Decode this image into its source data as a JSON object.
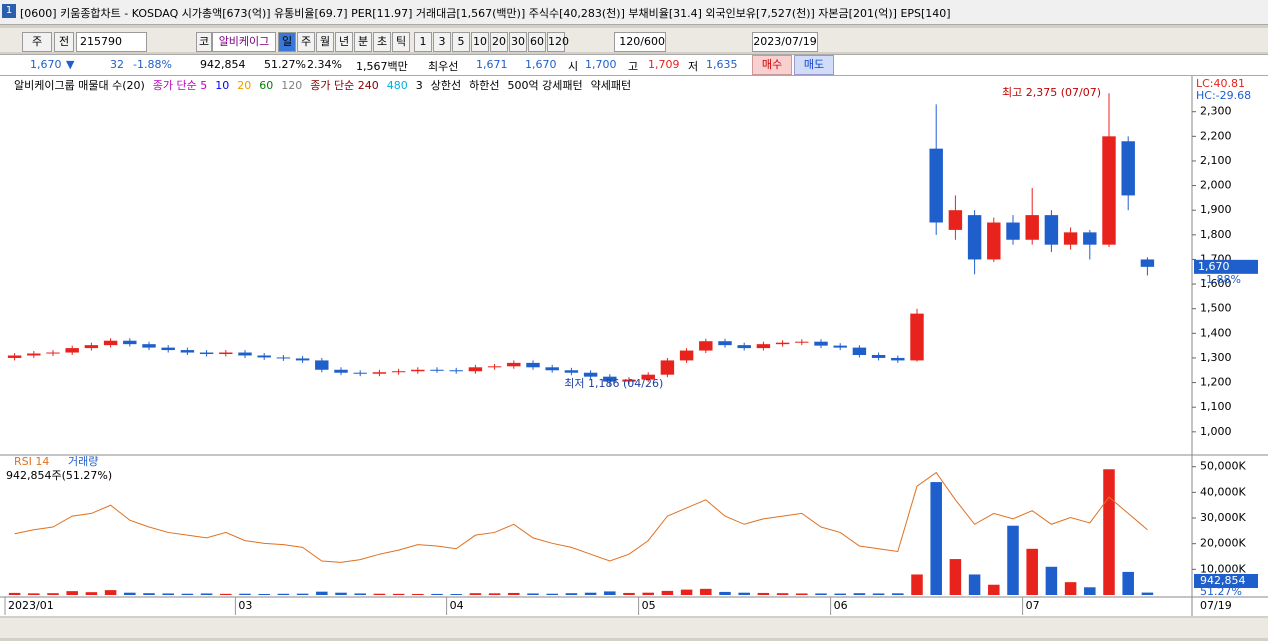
{
  "window_title": "[0600] 키움종합차트 - KOSDAQ 시가총액[673(억)] 유통비율[69.7] PER[11.97] 거래대금[1,567(백만)] 주식수[40,283(천)] 부채비율[31.4] 외국인보유[7,527(천)] 자본금[201(억)] EPS[140]",
  "toolbar": {
    "period": "주",
    "prev": "전",
    "code": "215790",
    "mode": "코",
    "name": "알비케이그",
    "timeframes": [
      "일",
      "주",
      "월",
      "년",
      "분",
      "초",
      "틱"
    ],
    "intervals": [
      "1",
      "3",
      "5",
      "10",
      "20",
      "30",
      "60",
      "120"
    ],
    "count": "120/600",
    "date": "2023/07/19"
  },
  "quote": {
    "price": "1,670",
    "arrow": "▼",
    "change": "32",
    "change_pct": "-1.88%",
    "volume": "942,854",
    "vol_ratio": "51.27%",
    "turnover": "2.34%",
    "amount": "1,567백만",
    "best_label": "최우선",
    "ask": "1,671",
    "bid": "1,670",
    "open_label": "시",
    "open": "1,700",
    "high_label": "고",
    "high": "1,709",
    "low_label": "저",
    "low": "1,635",
    "buy": "매수",
    "sell": "매도"
  },
  "legend": [
    {
      "text": "알비케이그룹 매물대 수(20)",
      "color": "#000000"
    },
    {
      "text": "종가 단순 5",
      "color": "#c000c0"
    },
    {
      "text": "10",
      "color": "#0000ff"
    },
    {
      "text": "20",
      "color": "#e8a000"
    },
    {
      "text": "60",
      "color": "#008000"
    },
    {
      "text": "120",
      "color": "#808080"
    },
    {
      "text": "종가 단순 240",
      "color": "#800000"
    },
    {
      "text": "480",
      "color": "#00b0e0"
    },
    {
      "text": "3",
      "color": "#000000"
    },
    {
      "text": "상한선",
      "color": "#000000"
    },
    {
      "text": "하한선",
      "color": "#000000"
    },
    {
      "text": "500억 강세패턴",
      "color": "#000000"
    },
    {
      "text": "약세패턴",
      "color": "#000000"
    }
  ],
  "corner": {
    "lc": "LC:40.81",
    "hc": "HC:-29.68"
  },
  "lower_legend": {
    "rsi": "RSI 14",
    "vol": "거래량",
    "info": "942,854주(51.27%)"
  },
  "chart_data": {
    "type": "candlestick",
    "categories": [
      "2023/01",
      null,
      null,
      null,
      null,
      null,
      null,
      null,
      null,
      null,
      null,
      null,
      "03",
      null,
      null,
      null,
      null,
      null,
      null,
      null,
      null,
      null,
      null,
      "04",
      null,
      null,
      null,
      null,
      null,
      null,
      null,
      null,
      null,
      "05",
      null,
      null,
      null,
      null,
      null,
      null,
      null,
      null,
      null,
      "06",
      null,
      null,
      null,
      null,
      null,
      null,
      null,
      null,
      null,
      "07",
      null,
      null,
      null,
      null,
      null,
      null
    ],
    "last_date": "07/19",
    "open": [
      1300,
      1310,
      1318,
      1322,
      1340,
      1352,
      1370,
      1356,
      1342,
      1332,
      1322,
      1316,
      1322,
      1310,
      1302,
      1298,
      1290,
      1252,
      1240,
      1236,
      1242,
      1246,
      1252,
      1250,
      1246,
      1262,
      1266,
      1280,
      1262,
      1250,
      1240,
      1224,
      1204,
      1212,
      1232,
      1290,
      1330,
      1368,
      1352,
      1340,
      1356,
      1362,
      1366,
      1350,
      1342,
      1312,
      1300,
      1290,
      2150,
      1820,
      1880,
      1700,
      1850,
      1780,
      1880,
      1760,
      1810,
      1760,
      2180,
      1700
    ],
    "high": [
      1320,
      1328,
      1332,
      1350,
      1362,
      1380,
      1380,
      1366,
      1352,
      1342,
      1332,
      1332,
      1332,
      1320,
      1312,
      1308,
      1300,
      1262,
      1250,
      1252,
      1256,
      1262,
      1262,
      1260,
      1272,
      1276,
      1290,
      1290,
      1272,
      1260,
      1250,
      1234,
      1222,
      1242,
      1300,
      1340,
      1378,
      1378,
      1362,
      1366,
      1372,
      1376,
      1376,
      1360,
      1352,
      1322,
      1310,
      1500,
      2330,
      1960,
      1900,
      1870,
      1880,
      1990,
      1900,
      1830,
      1820,
      2375,
      2200,
      1709
    ],
    "low": [
      1290,
      1300,
      1308,
      1312,
      1330,
      1342,
      1346,
      1332,
      1322,
      1312,
      1306,
      1306,
      1300,
      1292,
      1288,
      1280,
      1242,
      1230,
      1226,
      1226,
      1232,
      1236,
      1240,
      1236,
      1236,
      1252,
      1256,
      1252,
      1240,
      1230,
      1214,
      1186,
      1194,
      1202,
      1222,
      1280,
      1320,
      1342,
      1330,
      1330,
      1346,
      1352,
      1340,
      1332,
      1302,
      1290,
      1280,
      1285,
      1800,
      1780,
      1640,
      1690,
      1760,
      1760,
      1730,
      1740,
      1700,
      1750,
      1900,
      1635
    ],
    "close": [
      1310,
      1318,
      1322,
      1340,
      1352,
      1370,
      1356,
      1342,
      1332,
      1322,
      1316,
      1322,
      1310,
      1302,
      1298,
      1290,
      1252,
      1240,
      1236,
      1242,
      1246,
      1252,
      1250,
      1246,
      1262,
      1266,
      1280,
      1262,
      1250,
      1240,
      1224,
      1204,
      1212,
      1232,
      1290,
      1330,
      1368,
      1352,
      1340,
      1356,
      1362,
      1366,
      1350,
      1342,
      1312,
      1300,
      1290,
      1480,
      1850,
      1900,
      1700,
      1850,
      1780,
      1880,
      1760,
      1810,
      1760,
      2200,
      1960,
      1670
    ],
    "up_color": "#e8221c",
    "down_color": "#1f5fcc",
    "ylim": [
      914,
      2445
    ],
    "yticks": [
      {
        "value": 1000,
        "label": "1,000"
      },
      {
        "value": 1100,
        "label": "1,100"
      },
      {
        "value": 1200,
        "label": "1,200"
      },
      {
        "value": 1300,
        "label": "1,300"
      },
      {
        "value": 1400,
        "label": "1,400"
      },
      {
        "value": 1500,
        "label": "1,500"
      },
      {
        "value": 1600,
        "label": "1,600"
      },
      {
        "value": 1700,
        "label": "1,700"
      },
      {
        "value": 1800,
        "label": "1,800"
      },
      {
        "value": 1900,
        "label": "1,900"
      },
      {
        "value": 2000,
        "label": "2,000"
      },
      {
        "value": 2100,
        "label": "2,100"
      },
      {
        "value": 2200,
        "label": "2,200"
      },
      {
        "value": 2300,
        "label": "2,300"
      }
    ],
    "last_price": {
      "value": 1670,
      "label": "1,670",
      "change": "-1.88%"
    },
    "high_annotation": "최고 2,375 (07/07)",
    "low_annotation": "최저 1,186 (04/26)",
    "volume": [
      820,
      640,
      700,
      1500,
      1100,
      1900,
      900,
      700,
      600,
      500,
      600,
      450,
      500,
      400,
      480,
      520,
      1300,
      900,
      600,
      500,
      450,
      400,
      420,
      380,
      700,
      650,
      800,
      600,
      500,
      700,
      900,
      1400,
      800,
      900,
      1600,
      2100,
      2400,
      1200,
      900,
      800,
      700,
      600,
      600,
      550,
      700,
      600,
      650,
      8000,
      44000,
      14000,
      8000,
      4000,
      27000,
      18000,
      11000,
      5000,
      3000,
      49000,
      9000,
      942.854
    ],
    "volume_label": "942,854",
    "volume_ylim": [
      0,
      53000
    ],
    "volume_yticks": [
      {
        "value": 10000,
        "label": "10,000K"
      },
      {
        "value": 20000,
        "label": "20,000K"
      },
      {
        "value": 30000,
        "label": "30,000K"
      },
      {
        "value": 40000,
        "label": "40,000K"
      },
      {
        "value": 50000,
        "label": "50,000K"
      }
    ],
    "rsi": [
      45,
      48,
      50,
      58,
      60,
      66,
      55,
      50,
      46,
      44,
      42,
      46,
      40,
      38,
      37,
      35,
      25,
      24,
      26,
      30,
      33,
      37,
      36,
      34,
      44,
      46,
      52,
      42,
      38,
      35,
      30,
      25,
      30,
      40,
      58,
      64,
      70,
      58,
      52,
      56,
      58,
      60,
      50,
      46,
      36,
      34,
      32,
      80,
      90,
      70,
      52,
      60,
      56,
      62,
      52,
      57,
      53,
      72,
      60,
      48
    ],
    "rsi_ylim": [
      0,
      100
    ],
    "rsi_color": "#e07020",
    "rsi_label": "51.27%"
  }
}
